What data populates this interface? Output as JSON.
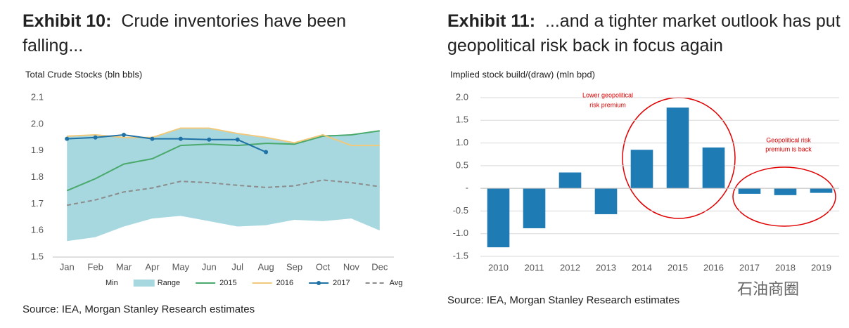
{
  "chart_data": [
    {
      "type": "line",
      "exhibit": "Exhibit 10:",
      "title": "Crude inventories have been falling...",
      "y_label": "Total Crude Stocks (bln bbls)",
      "source": "Source: IEA, Morgan Stanley Research estimates",
      "categories": [
        "Jan",
        "Feb",
        "Mar",
        "Apr",
        "May",
        "Jun",
        "Jul",
        "Aug",
        "Sep",
        "Oct",
        "Nov",
        "Dec"
      ],
      "ylim": [
        1.5,
        2.1
      ],
      "yticks": [
        1.5,
        1.6,
        1.7,
        1.8,
        1.9,
        {
          "value": 2,
          "label": "2.0"
        },
        2.1
      ],
      "grid": false,
      "series": [
        {
          "name": "Min",
          "stack": true,
          "values": [
            1.56,
            1.575,
            1.615,
            1.645,
            1.655,
            1.635,
            1.615,
            1.62,
            1.64,
            1.635,
            1.645,
            1.6
          ]
        },
        {
          "name": "Range",
          "stack": true,
          "color": "#a8d8df",
          "values": [
            0.395,
            0.385,
            0.335,
            0.305,
            0.33,
            0.35,
            0.35,
            0.33,
            0.29,
            0.325,
            0.315,
            0.375
          ]
        },
        {
          "name": "2015",
          "color": "#4aa96c",
          "values": [
            1.75,
            1.795,
            1.85,
            1.87,
            1.92,
            1.925,
            1.92,
            1.928,
            1.925,
            1.955,
            1.96,
            1.975
          ]
        },
        {
          "name": "2016",
          "color": "#f0c97c",
          "values": [
            1.955,
            1.96,
            1.95,
            1.95,
            1.985,
            1.985,
            1.965,
            1.95,
            1.93,
            1.96,
            1.92,
            1.92
          ]
        },
        {
          "name": "2017",
          "color": "#1f72a6",
          "markers": true,
          "values": [
            1.945,
            1.95,
            1.96,
            1.945,
            1.945,
            1.942,
            1.942,
            1.895,
            null,
            null,
            null,
            null
          ]
        },
        {
          "name": "Avg",
          "color": "#8c8c8c",
          "dash": true,
          "values": [
            1.695,
            1.715,
            1.745,
            1.76,
            1.785,
            1.78,
            1.77,
            1.762,
            1.768,
            1.79,
            1.78,
            1.765
          ]
        }
      ]
    },
    {
      "type": "bar",
      "exhibit": "Exhibit 11:",
      "title": "...and a tighter market outlook has put geopolitical risk back in focus again",
      "y_label": "Implied stock build/(draw) (mln bpd)",
      "source": "Source: IEA, Morgan Stanley Research estimates",
      "categories": [
        "2010",
        "2011",
        "2012",
        "2013",
        "2014",
        "2015",
        "2016",
        "2017",
        "2018",
        "2019"
      ],
      "values": [
        -1.3,
        -0.88,
        0.35,
        -0.57,
        0.85,
        1.78,
        0.9,
        -0.12,
        -0.15,
        -0.1
      ],
      "color": "#1f7bb4",
      "ylim": [
        -1.5,
        2.0
      ],
      "yticks": [
        -1.5,
        {
          "value": -1,
          "label": "-1.0"
        },
        -0.5,
        {
          "value": 0,
          "label": "-"
        },
        0.5,
        {
          "value": 1,
          "label": "1.0"
        },
        1.5,
        {
          "value": 2,
          "label": "2.0"
        }
      ],
      "grid": true,
      "annotations": [
        {
          "lines": [
            "Lower geopolitical",
            "risk premium"
          ]
        },
        {
          "lines": [
            "Geopolitical risk",
            "premium is back"
          ]
        }
      ]
    }
  ],
  "watermark": "石油商圈"
}
